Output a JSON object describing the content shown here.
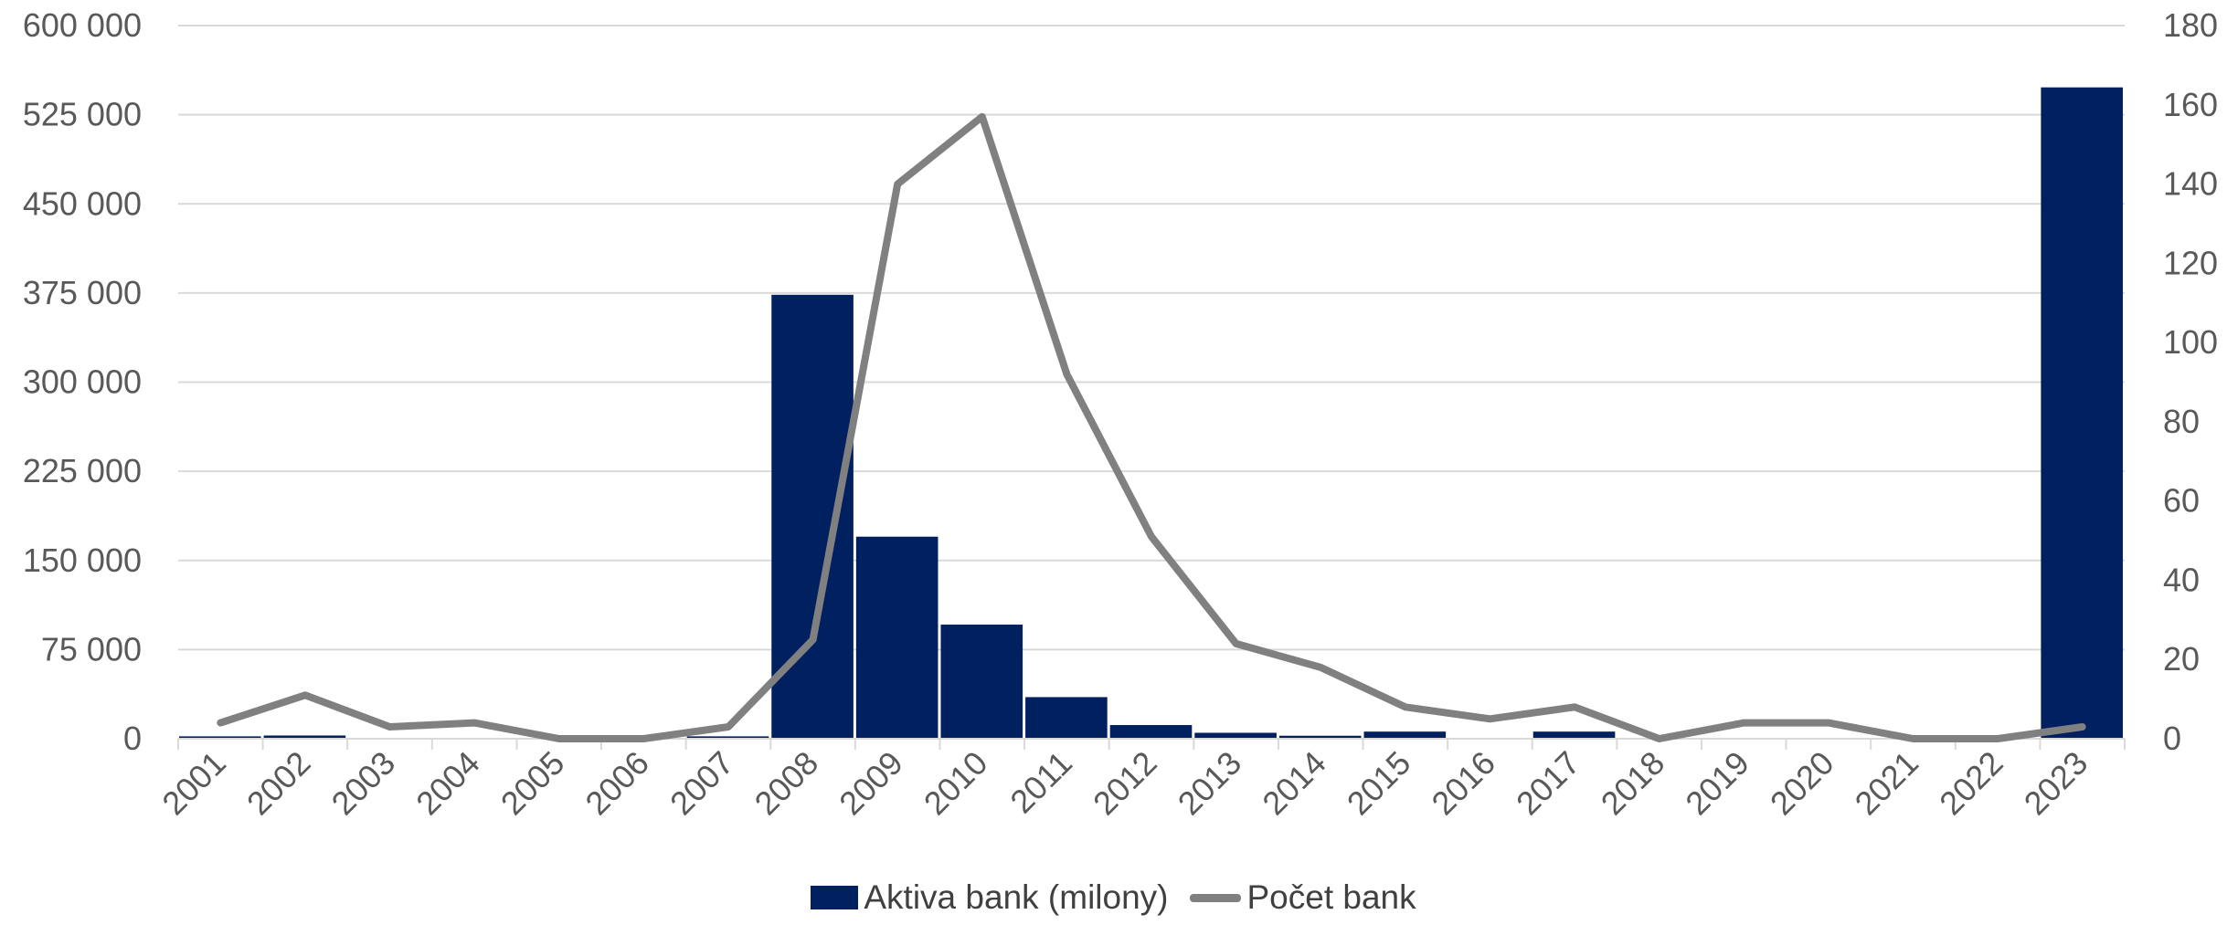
{
  "chart_data": {
    "type": "bar",
    "categories": [
      "2001",
      "2002",
      "2003",
      "2004",
      "2005",
      "2006",
      "2007",
      "2008",
      "2009",
      "2010",
      "2011",
      "2012",
      "2013",
      "2014",
      "2015",
      "2016",
      "2017",
      "2018",
      "2019",
      "2020",
      "2021",
      "2022",
      "2023"
    ],
    "series": [
      {
        "name": "Aktiva bank (milony)",
        "type": "bar",
        "axis": "left",
        "color": "#002060",
        "values": [
          2000,
          2700,
          300,
          200,
          0,
          0,
          2000,
          373500,
          170000,
          96000,
          35000,
          11500,
          5000,
          2500,
          6000,
          0,
          6000,
          0,
          0,
          0,
          0,
          0,
          548000
        ]
      },
      {
        "name": "Počet bank",
        "type": "line",
        "axis": "right",
        "color": "#808080",
        "values": [
          4,
          11,
          3,
          4,
          0,
          0,
          3,
          25,
          140,
          157,
          92,
          51,
          24,
          18,
          8,
          5,
          8,
          0,
          4,
          4,
          0,
          0,
          3
        ]
      }
    ],
    "left_axis": {
      "ylim": [
        0,
        600000
      ],
      "ticks": [
        "0",
        "75 000",
        "150 000",
        "225 000",
        "300 000",
        "375 000",
        "450 000",
        "525 000",
        "600 000"
      ]
    },
    "right_axis": {
      "ylim": [
        0,
        180
      ],
      "ticks": [
        "0",
        "20",
        "40",
        "60",
        "80",
        "100",
        "120",
        "140",
        "160",
        "180"
      ]
    },
    "gridlines": true,
    "legend_position": "bottom",
    "legend": [
      "Aktiva bank (milony)",
      "Počet bank"
    ],
    "title": "",
    "xlabel": "",
    "ylabel": ""
  }
}
